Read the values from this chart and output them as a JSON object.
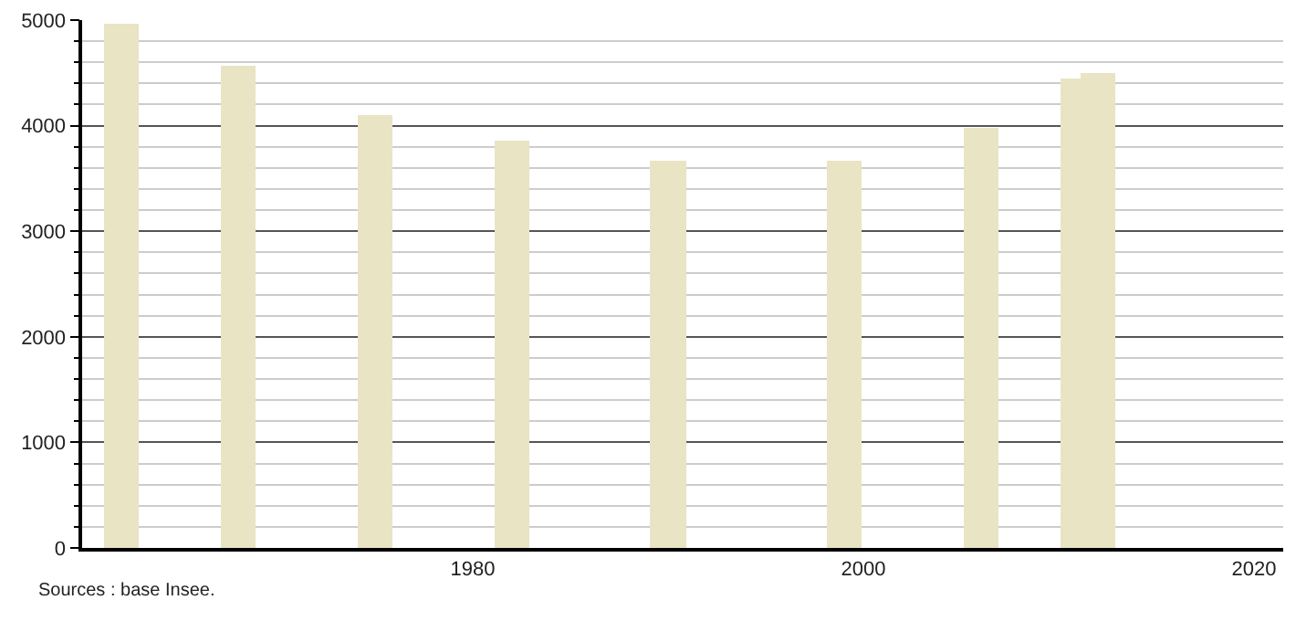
{
  "chart_data": {
    "type": "bar",
    "x": [
      1962,
      1968,
      1975,
      1982,
      1990,
      1999,
      2006,
      2011,
      2012
    ],
    "values": [
      4960,
      4570,
      4100,
      3860,
      3670,
      3670,
      3980,
      4450,
      4500
    ],
    "color": "#e9e4c4",
    "xlim": [
      1960,
      2021.5
    ],
    "xticks": [
      1980,
      2000,
      2020
    ],
    "ylim": [
      0,
      5000
    ],
    "yticks": [
      0,
      {
        "value": 200,
        "label": null
      },
      {
        "value": 400,
        "label": null
      },
      {
        "value": 600,
        "label": null
      },
      {
        "value": 800,
        "label": null
      },
      1000,
      {
        "value": 1200,
        "label": null
      },
      {
        "value": 1400,
        "label": null
      },
      {
        "value": 1600,
        "label": null
      },
      {
        "value": 1800,
        "label": null
      },
      2000,
      {
        "value": 2200,
        "label": null
      },
      {
        "value": 2400,
        "label": null
      },
      {
        "value": 2600,
        "label": null
      },
      {
        "value": 2800,
        "label": null
      },
      3000,
      {
        "value": 3200,
        "label": null
      },
      {
        "value": 3400,
        "label": null
      },
      {
        "value": 3600,
        "label": null
      },
      {
        "value": 3800,
        "label": null
      },
      4000,
      {
        "value": 4200,
        "label": null
      },
      {
        "value": 4400,
        "label": null
      },
      {
        "value": 4600,
        "label": null
      },
      {
        "value": 4800,
        "label": null
      },
      5000
    ],
    "grid": "y",
    "annotations": [
      "Sources : base Insee."
    ]
  }
}
